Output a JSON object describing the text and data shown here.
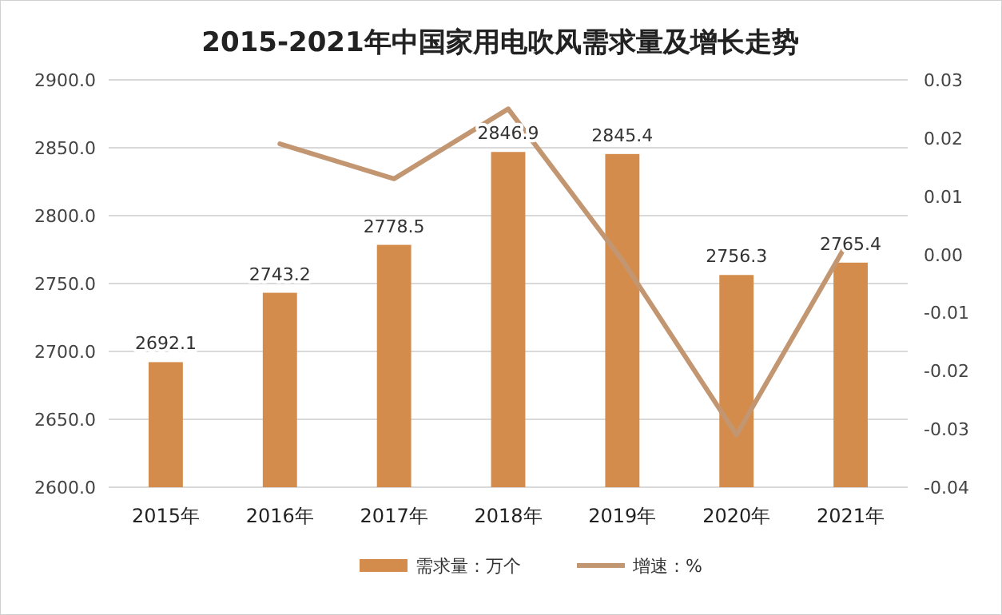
{
  "chart_data": {
    "type": "bar",
    "title": "2015-2021年中国家用电吹风需求量及增长走势",
    "categories": [
      "2015年",
      "2016年",
      "2017年",
      "2018年",
      "2019年",
      "2020年",
      "2021年"
    ],
    "series": [
      {
        "name": "需求量：万个",
        "color": "#d48c4c",
        "values": [
          2692.1,
          2743.2,
          2778.5,
          2846.9,
          2845.4,
          2756.3,
          2765.4
        ],
        "data_labels": true
      },
      {
        "name": "增速：%",
        "type": "line",
        "axis": "y2",
        "color": "#c39672",
        "values": [
          null,
          0.019,
          0.013,
          0.025,
          -0.001,
          -0.031,
          0.003
        ]
      }
    ],
    "ylim": [
      2600,
      2900
    ],
    "yticks": [
      {
        "value": 2600,
        "label": "2600.0"
      },
      {
        "value": 2650,
        "label": "2650.0"
      },
      {
        "value": 2700,
        "label": "2700.0"
      },
      {
        "value": 2750,
        "label": "2750.0"
      },
      {
        "value": 2800,
        "label": "2800.0"
      },
      {
        "value": 2850,
        "label": "2850.0"
      },
      {
        "value": 2900,
        "label": "2900.0"
      }
    ],
    "y2lim": [
      -0.04,
      0.03
    ],
    "y2ticks": [
      -0.04,
      -0.03,
      -0.02,
      -0.01,
      {
        "value": 0,
        "label": "0.00"
      },
      0.01,
      0.02,
      0.03
    ],
    "grid": "y",
    "legend": "bottom"
  }
}
